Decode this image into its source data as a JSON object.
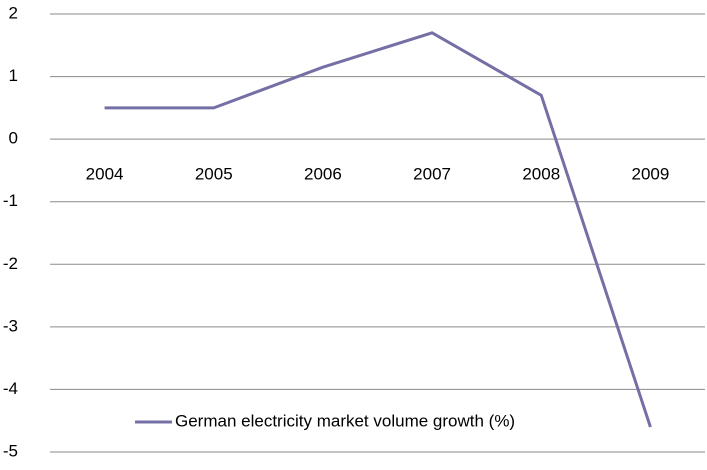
{
  "chart_data": {
    "type": "line",
    "categories": [
      "2004",
      "2005",
      "2006",
      "2007",
      "2008",
      "2009"
    ],
    "series": [
      {
        "name": "German electricity market volume growth (%)",
        "color": "#7470a6",
        "values": [
          0.5,
          0.5,
          1.15,
          1.7,
          0.7,
          -4.6
        ]
      }
    ],
    "ylim": [
      -5,
      2
    ],
    "yticks": [
      -5,
      -4,
      -3,
      -2,
      -1,
      0,
      1,
      2
    ],
    "grid": true,
    "legend": "bottom"
  }
}
